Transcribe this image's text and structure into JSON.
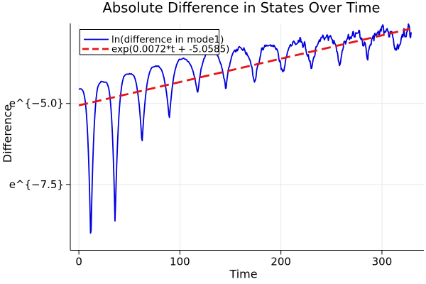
{
  "chart_data": {
    "type": "line",
    "title": "Absolute Difference in States Over Time",
    "xlabel": "Time",
    "ylabel": "Difference",
    "y_scale": "ln",
    "xlim": [
      -8.5,
      341.5
    ],
    "ylim_ln": [
      -9.53,
      -2.53
    ],
    "grid": true,
    "x_ticks": [
      {
        "t": 0,
        "label": "0"
      },
      {
        "t": 100,
        "label": "100"
      },
      {
        "t": 200,
        "label": "200"
      },
      {
        "t": 300,
        "label": "300"
      }
    ],
    "y_ticks": [
      {
        "ln": -5.0,
        "label": "e^{−5.0}"
      },
      {
        "ln": -7.5,
        "label": "e^{−7.5}"
      }
    ],
    "legend": {
      "position": "top-left",
      "border_color": "#000000",
      "background": "#ffffff"
    },
    "series": [
      {
        "name": "ln(difference in mode1)",
        "color": "#0000dd",
        "style": "solid",
        "model": "oscillation-with-cusp-dips",
        "start": {
          "t": 0,
          "ln": -4.55
        },
        "end": {
          "t": 329,
          "ln": -2.75
        },
        "dips": [
          {
            "t": 11.8,
            "ln": -9.4
          },
          {
            "t": 35.8,
            "ln": -8.7
          },
          {
            "t": 62.5,
            "ln": -6.25
          },
          {
            "t": 89.5,
            "ln": -5.5
          },
          {
            "t": 117.5,
            "ln": -4.7
          },
          {
            "t": 145.5,
            "ln": -4.55
          },
          {
            "t": 174,
            "ln": -4.45
          },
          {
            "t": 202,
            "ln": -4.12
          },
          {
            "t": 230,
            "ln": -4.0
          },
          {
            "t": 258,
            "ln": -3.85
          },
          {
            "t": 286,
            "ln": -3.55
          },
          {
            "t": 314,
            "ln": -3.35
          }
        ],
        "peaks": [
          {
            "t": 24,
            "ln": -4.33
          },
          {
            "t": 50,
            "ln": -4.08
          },
          {
            "t": 76.5,
            "ln": -3.85
          },
          {
            "t": 103,
            "ln": -3.62
          },
          {
            "t": 131,
            "ln": -3.4
          },
          {
            "t": 159,
            "ln": -3.3
          },
          {
            "t": 188,
            "ln": -3.2
          },
          {
            "t": 216,
            "ln": -3.06
          },
          {
            "t": 244,
            "ln": -2.93
          },
          {
            "t": 272,
            "ln": -2.86
          },
          {
            "t": 300,
            "ln": -2.73
          }
        ],
        "noise_amp_early": 0.018,
        "noise_amp_late": 0.2
      },
      {
        "name": "exp(0.0072*t + -5.0585)",
        "color": "#e81414",
        "style": "dashed",
        "slope": 0.0072,
        "intercept": -5.0585,
        "t_range": [
          0,
          328
        ]
      }
    ],
    "colors": {
      "grid": "#e9e9e9",
      "axis": "#000000",
      "background": "#ffffff"
    }
  }
}
